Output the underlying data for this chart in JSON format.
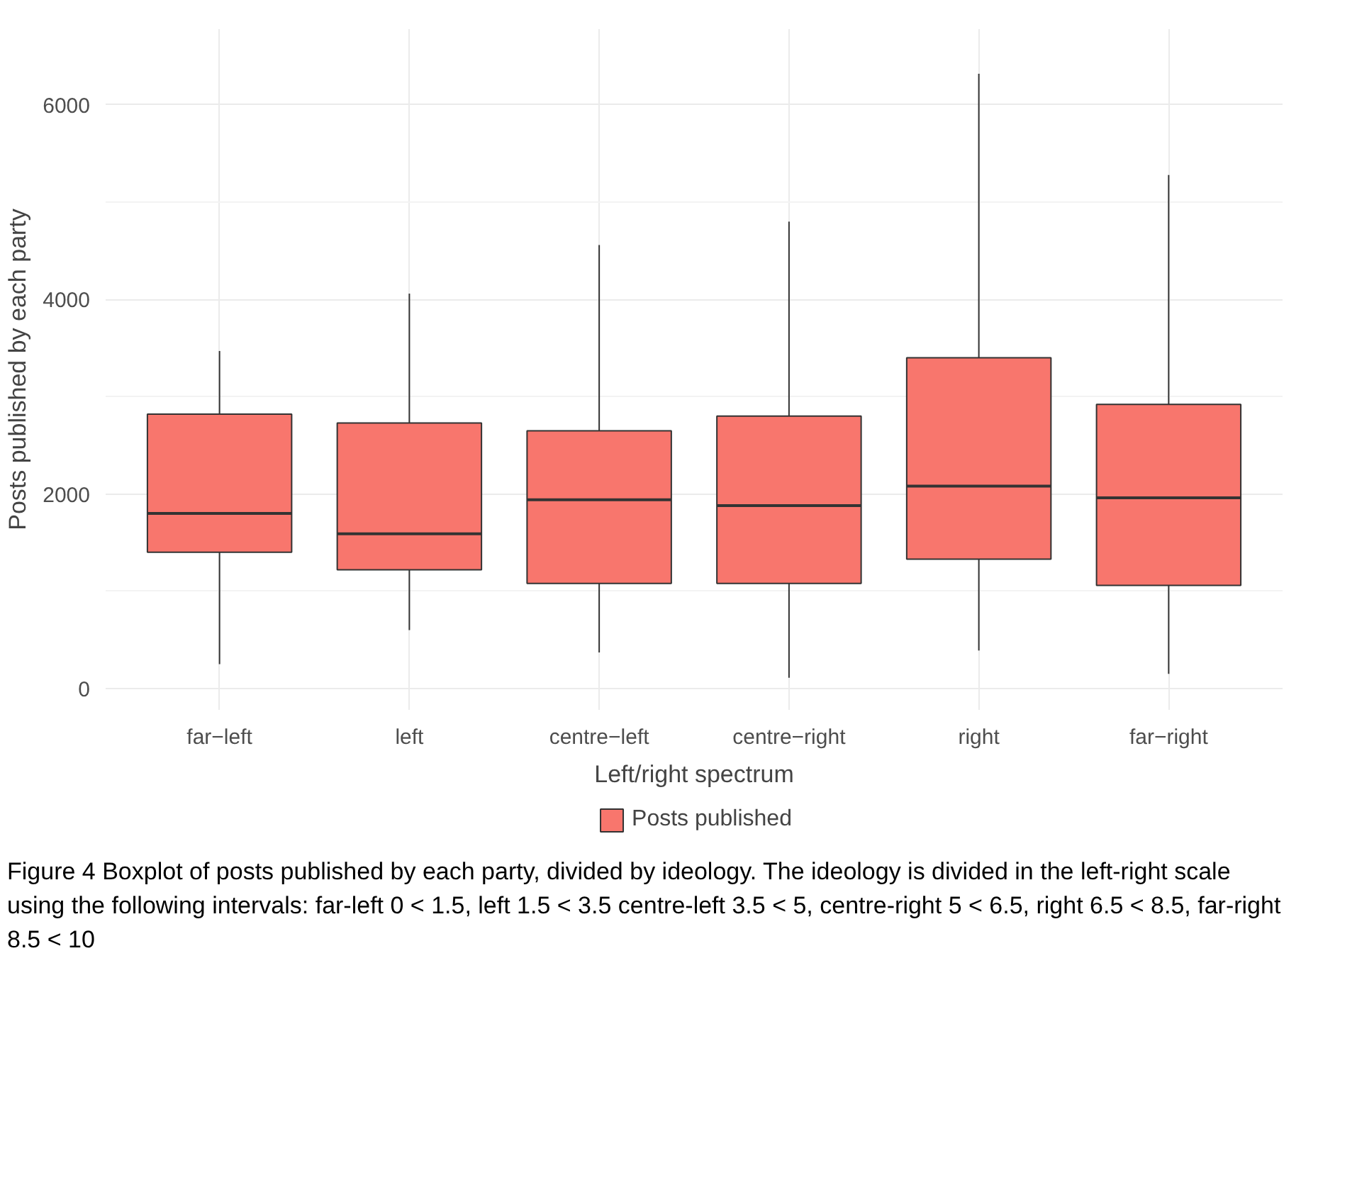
{
  "chart_data": {
    "type": "box",
    "xlabel": "Left/right spectrum",
    "ylabel": "Posts published by each party",
    "categories": [
      "far−left",
      "left",
      "centre−left",
      "centre−right",
      "right",
      "far−right"
    ],
    "series": [
      {
        "name": "Posts published",
        "color": "#f8766d",
        "boxes": [
          {
            "low": 250,
            "q1": 1400,
            "median": 1800,
            "q3": 2820,
            "high": 3470
          },
          {
            "low": 600,
            "q1": 1220,
            "median": 1590,
            "q3": 2730,
            "high": 4060
          },
          {
            "low": 370,
            "q1": 1080,
            "median": 1940,
            "q3": 2650,
            "high": 4560
          },
          {
            "low": 110,
            "q1": 1080,
            "median": 1880,
            "q3": 2800,
            "high": 4800
          },
          {
            "low": 390,
            "q1": 1330,
            "median": 2080,
            "q3": 3400,
            "high": 6320
          },
          {
            "low": 150,
            "q1": 1060,
            "median": 1960,
            "q3": 2920,
            "high": 5280
          }
        ]
      }
    ],
    "ylim": [
      -220,
      6780
    ],
    "yticks": [
      0,
      2000,
      4000,
      6000
    ],
    "grid": true,
    "legend": "bottom",
    "annotations": [
      "Figure 4  Boxplot of posts published by each party, divided by ideology. The ideology is divided in the left-right scale using the following intervals: far-left 0 < 1.5, left 1.5 < 3.5 centre-left 3.5 < 5, centre-right 5 < 6.5, right 6.5 < 8.5, far-right 8.5 < 10"
    ]
  }
}
